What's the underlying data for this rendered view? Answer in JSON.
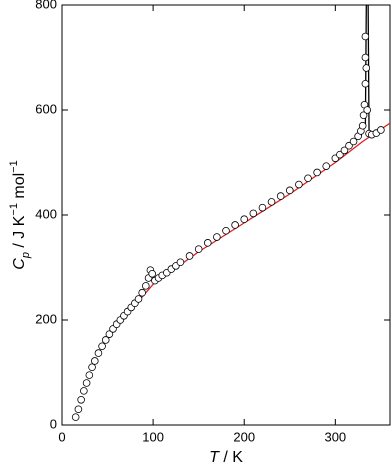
{
  "chart_data": {
    "type": "scatter",
    "x": [
      15,
      18,
      21,
      24,
      27,
      30,
      33,
      36,
      40,
      44,
      48,
      52,
      56,
      60,
      64,
      68,
      72,
      76,
      80,
      84,
      88,
      92,
      95,
      97,
      99,
      102,
      106,
      110,
      115,
      120,
      125,
      130,
      140,
      150,
      160,
      170,
      180,
      190,
      200,
      210,
      220,
      230,
      240,
      250,
      260,
      270,
      280,
      290,
      300,
      305,
      310,
      315,
      320,
      325,
      328,
      330,
      331,
      332,
      333,
      333,
      333,
      334,
      335,
      337,
      340,
      345,
      350
    ],
    "values": [
      15,
      30,
      48,
      65,
      80,
      95,
      110,
      122,
      137,
      150,
      162,
      173,
      183,
      192,
      200,
      208,
      216,
      224,
      232,
      240,
      252,
      265,
      280,
      295,
      288,
      275,
      280,
      285,
      290,
      297,
      303,
      310,
      322,
      335,
      347,
      358,
      370,
      381,
      392,
      403,
      414,
      425,
      436,
      447,
      458,
      470,
      481,
      493,
      508,
      515,
      523,
      532,
      540,
      550,
      560,
      570,
      590,
      610,
      650,
      700,
      740,
      680,
      600,
      555,
      553,
      556,
      562
    ],
    "color": "#ffffff",
    "lines": [
      {
        "color": "#e02020",
        "x": [
          85,
          100,
          150,
          200,
          250,
          300,
          330,
          360
        ],
        "values": [
          238,
          268,
          330,
          385,
          440,
          500,
          540,
          575
        ]
      },
      {
        "color": "#000000",
        "x": [
          328,
          333,
          334,
          336,
          337,
          345,
          352
        ],
        "values": [
          550,
          575,
          800,
          800,
          560,
          555,
          558
        ]
      }
    ],
    "xlabel_parts": [
      {
        "text": "T",
        "style": "italic"
      },
      {
        "text": " / K",
        "style": "normal"
      }
    ],
    "ylabel_parts": [
      {
        "text": "C",
        "style": "italic"
      },
      {
        "text": "p",
        "style": "italic",
        "shift": "sub"
      },
      {
        "text": " / J K",
        "style": "normal"
      },
      {
        "text": "−1",
        "style": "normal",
        "shift": "super"
      },
      {
        "text": " mol",
        "style": "normal"
      },
      {
        "text": "−1",
        "style": "normal",
        "shift": "super"
      }
    ],
    "xlim": [
      0,
      360
    ],
    "xticks": [
      0,
      100,
      200,
      300
    ],
    "ylim": [
      0,
      800
    ],
    "yticks": [
      0,
      200,
      400,
      600,
      800
    ]
  }
}
